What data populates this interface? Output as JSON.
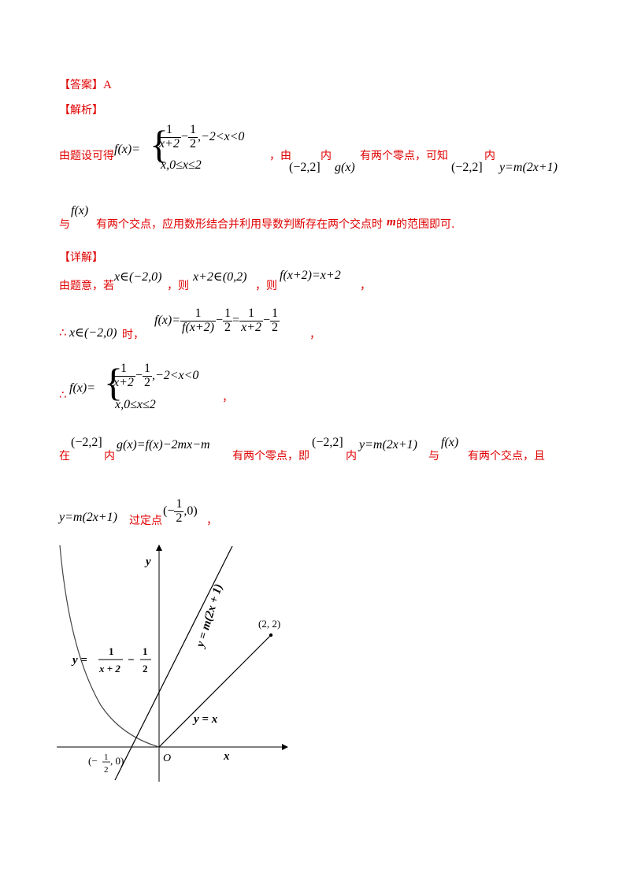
{
  "answer": {
    "label": "【答案】",
    "value": "A"
  },
  "analysis": {
    "label": "【解析】",
    "p1": {
      "t1": "由题设可得",
      "f_lhs": "f(x)=",
      "case1_num": "1",
      "case1_den": "x+2",
      "case1_minus": "−",
      "case1_half_num": "1",
      "case1_half_den": "2",
      "case1_cond": ",−2<x<0",
      "case2": "x,0≤x≤2",
      "t2": "，由",
      "interval": "(−2,2]",
      "t3": "内",
      "gx": "g(x)",
      "t4": "有两个零点，可知",
      "interval2": "(−2,2]",
      "t5": "内",
      "line": "y=m(2x+1)"
    },
    "p2": {
      "t1": "与",
      "fx": "f(x)",
      "t2": "有两个交点，应用数形结合并利用导数判断存在两个交点时",
      "m": "m",
      "t3": "的范围即可."
    }
  },
  "detail": {
    "label": "【详解】",
    "l1": {
      "t1": "由题意，若",
      "m1": "x∈(−2,0)",
      "t2": "，则",
      "m2": "x+2∈(0,2)",
      "t3": "，则",
      "m3": "f(x+2)=x+2",
      "t4": "，"
    },
    "l2": {
      "therefore": "∴",
      "m1": "x∈(−2,0)",
      "t1": "时，",
      "lhs": "f(x)=",
      "f1_num": "1",
      "f1_den": "f(x+2)",
      "minus": "−",
      "f2_num": "1",
      "f2_den": "2",
      "eq": "=",
      "f3_num": "1",
      "f3_den": "x+2",
      "minus2": "−",
      "f4_num": "1",
      "f4_den": "2",
      "t2": "，"
    },
    "l3": {
      "therefore": "∴",
      "lhs": "f(x)=",
      "comma": "，"
    },
    "l4": {
      "t1": "在",
      "m1": "(−2,2]",
      "t2": "内",
      "m2": "g(x)=f(x)−2mx−m",
      "t3": "有两个零点，即",
      "m3": "(−2,2]",
      "t4": "内",
      "m4": "y=m(2x+1)",
      "t5": "与",
      "m5": "f(x)",
      "t6": "有两个交点，且"
    },
    "l5": {
      "m1": "y=m(2x+1)",
      "t1": "过定点",
      "pt_open": "(−",
      "pt_num": "1",
      "pt_den": "2",
      "pt_close": ",0)",
      "t2": "，"
    }
  },
  "graph": {
    "y_axis": "y",
    "x_axis": "x",
    "origin": "O",
    "curve_label": "y = ",
    "curve_num": "1",
    "curve_den": "x + 2",
    "curve_minus": "−",
    "curve_half_num": "1",
    "curve_half_den": "2",
    "line_label": "y = m(2x + 1)",
    "yx_label": "y = x",
    "point_label": "(2, 2)",
    "fixed_open": "(−",
    "fixed_num": "1",
    "fixed_den": "2",
    "fixed_close": ", 0)"
  }
}
